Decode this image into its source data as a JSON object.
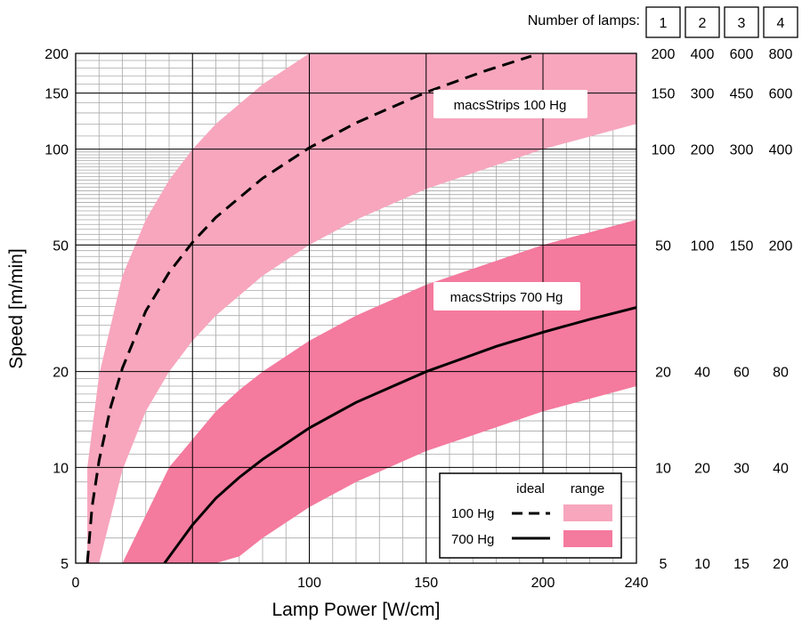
{
  "chart_data": {
    "type": "line",
    "xlabel": "Lamp Power [W/cm]",
    "ylabel": "Speed [m/min]",
    "xlim": [
      0,
      240
    ],
    "ylim": [
      5,
      200
    ],
    "yscale": "log",
    "grid": true,
    "x_ticks": [
      "0",
      "100",
      "150",
      "200",
      "240"
    ],
    "y_ticks": [
      "5",
      "10",
      "20",
      "50",
      "100",
      "150",
      "200"
    ],
    "series": [
      {
        "name": "100 Hg",
        "ideal": {
          "x": [
            5,
            7,
            10,
            15,
            20,
            30,
            40,
            50,
            60,
            80,
            100,
            120,
            150,
            175,
            195
          ],
          "y": [
            5,
            7.5,
            10.5,
            15.5,
            20.5,
            31,
            41,
            51,
            61,
            81,
            101,
            121,
            151,
            176,
            196
          ]
        },
        "range_x": [
          5,
          10,
          20,
          30,
          40,
          50,
          60,
          80,
          100,
          120,
          150,
          200,
          240
        ],
        "range_low": [
          1.9,
          4.8,
          9.8,
          15,
          20,
          25,
          30,
          40,
          50,
          60,
          75,
          100,
          120
        ],
        "range_high": [
          10,
          19.5,
          40,
          60,
          80,
          100,
          120,
          160,
          200,
          240,
          300,
          400,
          480
        ],
        "color_range": "#f7a6bd"
      },
      {
        "name": "700 Hg",
        "ideal": {
          "x": [
            38,
            50,
            60,
            70,
            80,
            100,
            120,
            150,
            180,
            200,
            220,
            240
          ],
          "y": [
            5,
            6.6,
            8,
            9.3,
            10.6,
            13.3,
            16,
            20,
            24,
            26.6,
            29.2,
            31.8
          ]
        },
        "range_x": [
          20,
          40,
          60,
          70,
          80,
          100,
          120,
          150,
          200,
          240
        ],
        "range_low": [
          1.5,
          3,
          4.5,
          5.25,
          6,
          7.5,
          9,
          11.25,
          15,
          18
        ],
        "range_high": [
          5,
          10,
          15,
          17.5,
          20,
          25,
          30,
          37.5,
          50,
          60
        ],
        "color_range": "#f47a9e"
      }
    ],
    "annotations": [
      "macsStrips 100 Hg",
      "macsStrips 700 Hg"
    ],
    "legend": {
      "placement": "bottom-right",
      "header_ideal": "ideal",
      "header_range": "range",
      "rows": [
        "100 Hg",
        "700 Hg"
      ]
    },
    "lamps": {
      "label": "Number of lamps:",
      "headers": [
        "1",
        "2",
        "3",
        "4"
      ],
      "rows": [
        [
          "200",
          "400",
          "600",
          "800"
        ],
        [
          "150",
          "300",
          "450",
          "600"
        ],
        [
          "100",
          "200",
          "300",
          "400"
        ],
        [
          "50",
          "100",
          "150",
          "200"
        ],
        [
          "20",
          "40",
          "60",
          "80"
        ],
        [
          "10",
          "20",
          "30",
          "40"
        ],
        [
          "5",
          "10",
          "15",
          "20"
        ]
      ]
    },
    "colors": {
      "light_band": "#f7a6bd",
      "dark_band": "#f47a9e",
      "grid_major": "#000000",
      "grid_minor": "#a0a0a0"
    }
  }
}
